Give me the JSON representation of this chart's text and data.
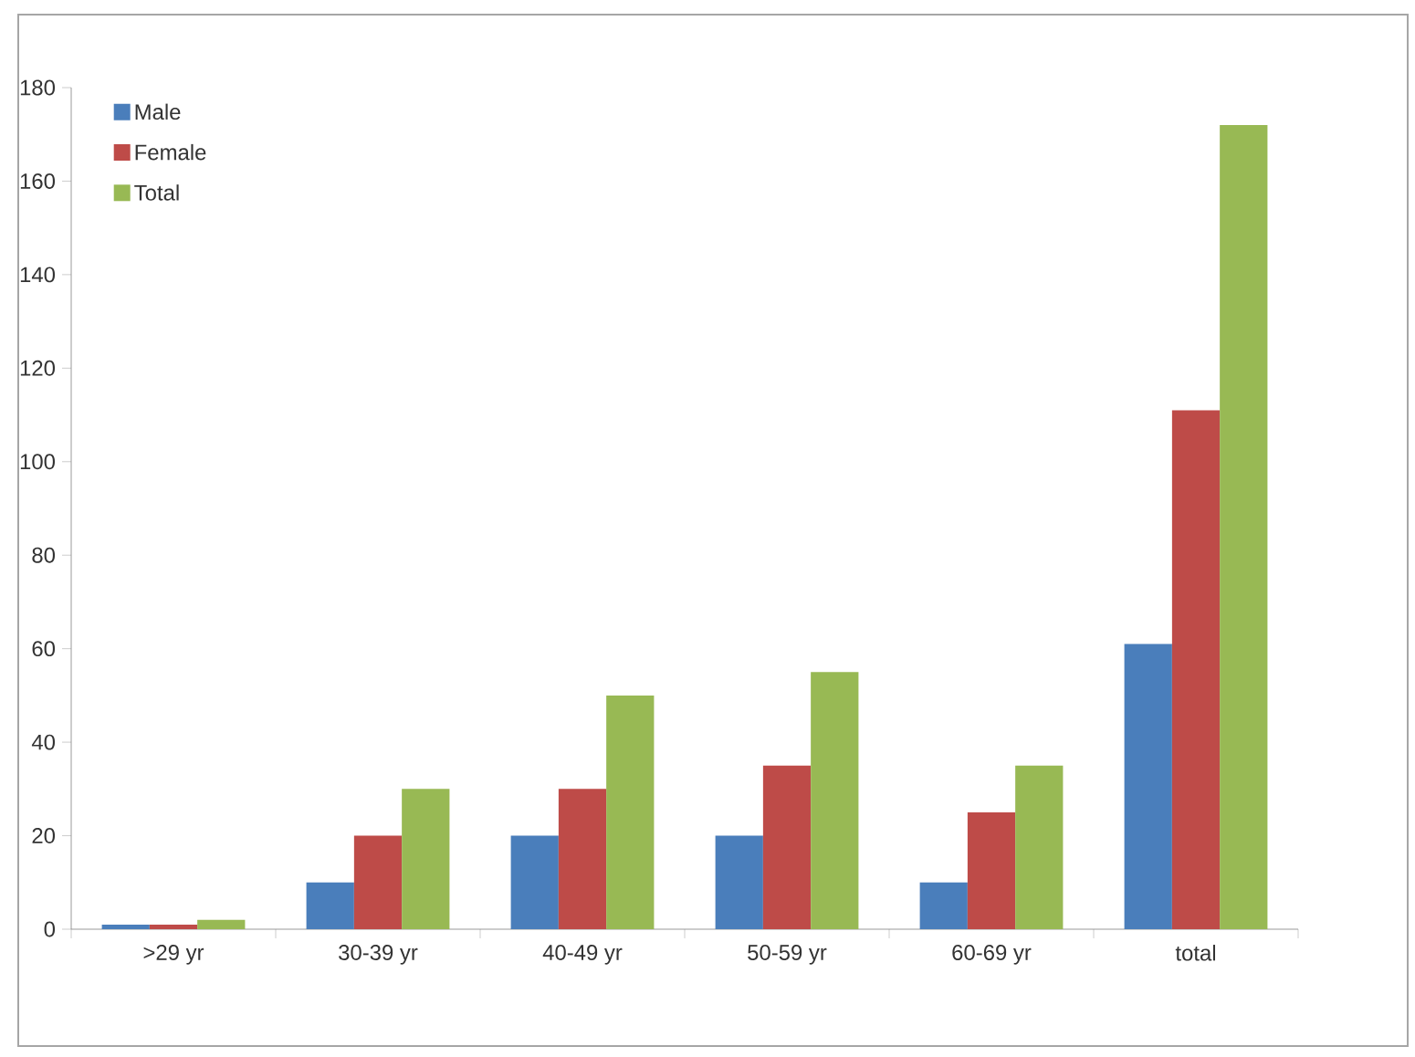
{
  "chart_data": {
    "type": "bar",
    "categories": [
      ">29 yr",
      "30-39 yr",
      "40-49 yr",
      "50-59 yr",
      "60-69 yr",
      "total"
    ],
    "series": [
      {
        "name": "Male",
        "color": "#4a7ebb",
        "values": [
          1,
          10,
          20,
          20,
          10,
          61
        ]
      },
      {
        "name": "Female",
        "color": "#be4b48",
        "values": [
          1,
          20,
          30,
          35,
          25,
          111
        ]
      },
      {
        "name": "Total",
        "color": "#98b954",
        "values": [
          2,
          30,
          50,
          55,
          35,
          172
        ]
      }
    ],
    "ylim": [
      0,
      180
    ],
    "yticks": [
      0,
      20,
      40,
      60,
      80,
      100,
      120,
      140,
      160,
      180
    ],
    "grid": false,
    "legend": "top left"
  }
}
